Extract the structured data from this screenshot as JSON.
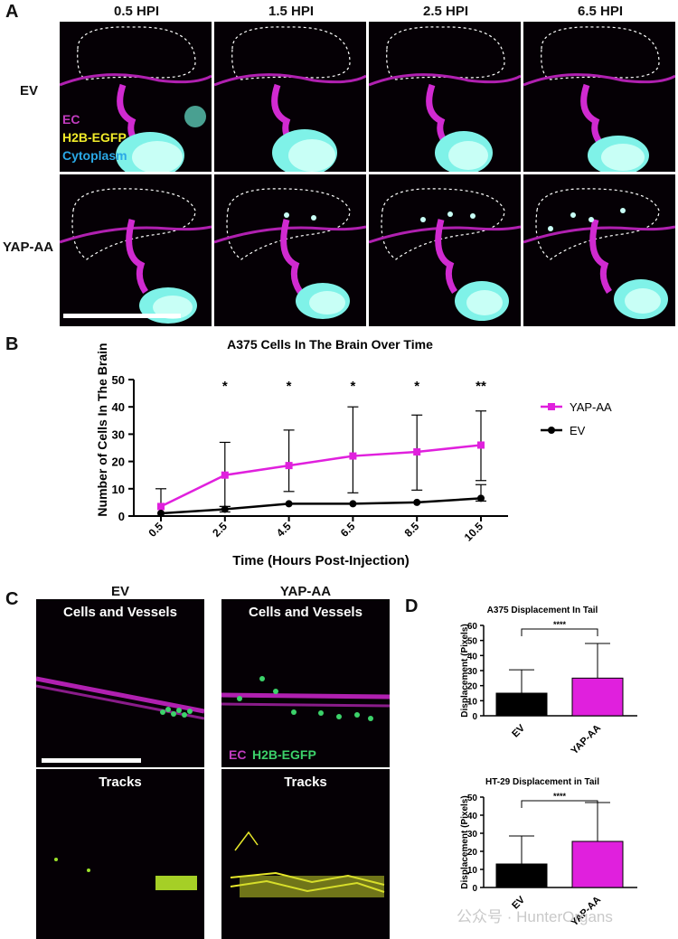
{
  "panel_letters": {
    "a": "A",
    "b": "B",
    "c": "C",
    "d": "D"
  },
  "panel_a": {
    "columns": [
      "0.5 HPI",
      "1.5 HPI",
      "2.5 HPI",
      "6.5 HPI"
    ],
    "rows": [
      "EV",
      "YAP-AA"
    ],
    "legend": {
      "ec": "EC",
      "h2b": "H2B-EGFP",
      "cyto": "Cytoplasm"
    }
  },
  "panel_c": {
    "col_titles": [
      "EV",
      "YAP-AA"
    ],
    "top_caption": "Cells and Vessels",
    "bottom_caption": "Tracks",
    "legend": {
      "ec": "EC",
      "h2b": "H2B-EGFP"
    }
  },
  "watermark": "公众号 · HunterOrgans",
  "colors": {
    "magenta": "#e020dd",
    "black": "#000000",
    "ec": "#c23cc0",
    "h2b": "#f2ec2a",
    "cyto": "#2aa8e6"
  },
  "chart_data": [
    {
      "type": "line",
      "title": "A375 Cells In The Brain Over Time",
      "xlabel": "Time (Hours Post-Injection)",
      "ylabel": "Number of Cells In The Brain",
      "categories": [
        "0.5",
        "2.5",
        "4.5",
        "6.5",
        "8.5",
        "10.5"
      ],
      "x": [
        0.5,
        2.5,
        4.5,
        6.5,
        8.5,
        10.5
      ],
      "ylim": [
        0,
        50
      ],
      "yticks": [
        0,
        10,
        20,
        30,
        40,
        50
      ],
      "yticklabels": [
        "0",
        "10",
        "20",
        "30",
        "40",
        "50"
      ],
      "series": [
        {
          "name": "YAP-AA",
          "color": "#e020dd",
          "values": [
            3.5,
            15,
            18.5,
            22,
            23.5,
            26
          ],
          "err_up": [
            6.5,
            12,
            13,
            18,
            13.5,
            12.5
          ],
          "err_down": [
            3.5,
            11.5,
            9.5,
            13.5,
            14,
            13
          ]
        },
        {
          "name": "EV",
          "color": "#000000",
          "values": [
            1,
            2.5,
            4.5,
            4.5,
            5,
            6.5
          ],
          "err_up": [
            0,
            1,
            0,
            0,
            0,
            5
          ],
          "err_down": [
            0,
            1,
            0,
            0,
            0,
            1
          ]
        }
      ],
      "annotations": [
        "",
        "*",
        "*",
        "*",
        "*",
        "**"
      ],
      "legend": "right"
    },
    {
      "type": "bar",
      "title": "A375 Displacement In Tail",
      "ylabel": "Displacement (Pixels)",
      "categories": [
        "EV",
        "YAP-AA"
      ],
      "values": [
        15,
        25
      ],
      "err_up": [
        15.5,
        23
      ],
      "colors": [
        "#000000",
        "#e020dd"
      ],
      "ylim": [
        0,
        60
      ],
      "yticks": [
        0,
        10,
        20,
        30,
        40,
        50,
        60
      ],
      "yticklabels": [
        "0",
        "10",
        "20",
        "30",
        "40",
        "50",
        "60"
      ],
      "significance": "****"
    },
    {
      "type": "bar",
      "title": "HT-29 Displacement in Tail",
      "ylabel": "Displacement (Pixels)",
      "categories": [
        "EV",
        "YAP-AA"
      ],
      "values": [
        13,
        25.5
      ],
      "err_up": [
        15.5,
        21.5
      ],
      "colors": [
        "#000000",
        "#e020dd"
      ],
      "ylim": [
        0,
        50
      ],
      "yticks": [
        0,
        10,
        20,
        30,
        40,
        50
      ],
      "yticklabels": [
        "0",
        "10",
        "20",
        "30",
        "40",
        "50"
      ],
      "significance": "****"
    }
  ]
}
